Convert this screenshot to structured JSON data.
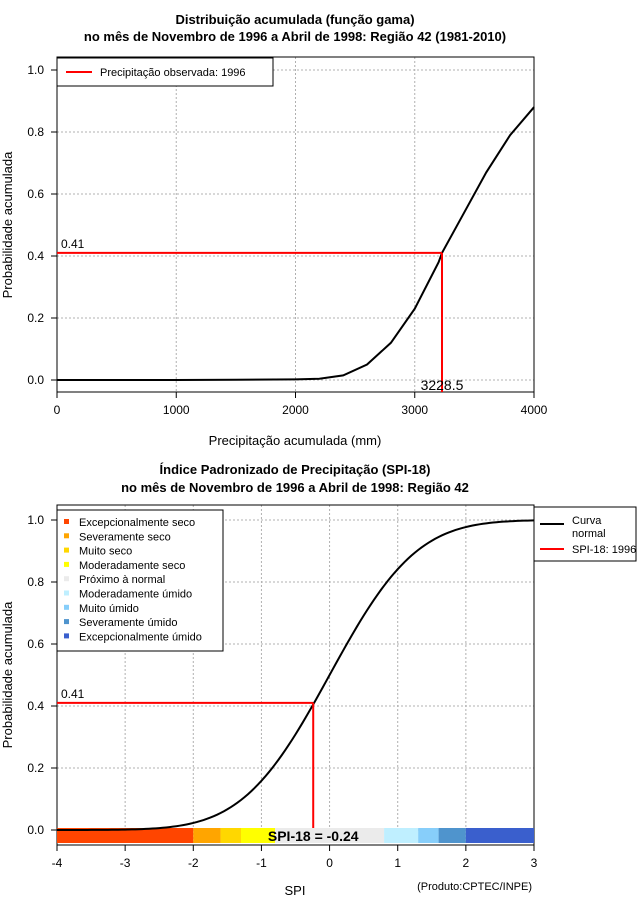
{
  "chart_data": [
    {
      "type": "line",
      "title_line1": "Distribuição acumulada (função gama)",
      "title_line2": "no mês de Novembro de 1996 a Abril de 1998: Região 42 (1981-2010)",
      "xlabel": "Precipitação acumulada (mm)",
      "ylabel": "Probabilidade acumulada",
      "xlim": [
        0,
        4000
      ],
      "ylim": [
        0,
        1
      ],
      "xticks": [
        "0",
        "1000",
        "2000",
        "3000",
        "4000"
      ],
      "xtick_values": [
        0,
        1000,
        2000,
        3000,
        4000
      ],
      "yticks": [
        "0.0",
        "0.2",
        "0.4",
        "0.6",
        "0.8",
        "1.0"
      ],
      "ytick_values": [
        0,
        0.2,
        0.4,
        0.6,
        0.8,
        1.0
      ],
      "grid": true,
      "legend": {
        "placement": "top-left",
        "entries": [
          {
            "label": "Precipitação observada: 1996",
            "color": "#ff0000"
          }
        ]
      },
      "curve": {
        "x": [
          0,
          500,
          1000,
          1500,
          2000,
          2200,
          2400,
          2600,
          2800,
          3000,
          3200,
          3228.5,
          3400,
          3600,
          3800,
          4000
        ],
        "y": [
          0,
          0,
          0,
          0.001,
          0.002,
          0.004,
          0.015,
          0.05,
          0.12,
          0.23,
          0.38,
          0.41,
          0.53,
          0.67,
          0.79,
          0.88
        ]
      },
      "observed": {
        "x": 3228.5,
        "y": 0.41,
        "x_label": "3228.5",
        "y_label": "0.41"
      }
    },
    {
      "type": "line",
      "title_line1": "Índice Padronizado de Precipitação (SPI-18)",
      "title_line2": "no mês de Novembro de 1996 a Abril de 1998: Região 42",
      "xlabel": "SPI",
      "ylabel": "Probabilidade acumulada",
      "xlim": [
        -4,
        3
      ],
      "ylim": [
        0,
        1
      ],
      "xticks": [
        "-4",
        "-3",
        "-2",
        "-1",
        "0",
        "1",
        "2",
        "3"
      ],
      "xtick_values": [
        -4,
        -3,
        -2,
        -1,
        0,
        1,
        2,
        3
      ],
      "yticks": [
        "0.0",
        "0.2",
        "0.4",
        "0.6",
        "0.8",
        "1.0"
      ],
      "ytick_values": [
        0,
        0.2,
        0.4,
        0.6,
        0.8,
        1.0
      ],
      "grid": true,
      "curve": {
        "distribution": "normal",
        "mean": 0,
        "sd": 1
      },
      "observed": {
        "x": -0.24,
        "y": 0.41,
        "y_label": "0.41",
        "spi_label": "SPI-18 = -0.24"
      },
      "legend_right": {
        "placement": "top-right",
        "entries": [
          {
            "label": "Curva",
            "label2": "normal",
            "color": "#000000"
          },
          {
            "label": "SPI-18: 1996",
            "color": "#ff0000"
          }
        ]
      },
      "categories": [
        {
          "label": "Excepcionalmente seco",
          "from": -4,
          "to": -2,
          "color": "#ff4500"
        },
        {
          "label": "Severamente seco",
          "from": -2,
          "to": -1.6,
          "color": "#ffa500"
        },
        {
          "label": "Muito seco",
          "from": -1.6,
          "to": -1.3,
          "color": "#ffd700"
        },
        {
          "label": "Moderadamente seco",
          "from": -1.3,
          "to": -0.8,
          "color": "#ffff00"
        },
        {
          "label": "Próximo à normal",
          "from": -0.8,
          "to": 0.8,
          "color": "#ebebeb"
        },
        {
          "label": "Moderadamente úmido",
          "from": 0.8,
          "to": 1.3,
          "color": "#bfefff"
        },
        {
          "label": "Muito úmido",
          "from": 1.3,
          "to": 1.6,
          "color": "#87cefa"
        },
        {
          "label": "Severamente úmido",
          "from": 1.6,
          "to": 2,
          "color": "#4f94cd"
        },
        {
          "label": "Excepcionalmente úmido",
          "from": 2,
          "to": 3,
          "color": "#3a5fcd"
        }
      ],
      "credit": "(Produto:CPTEC/INPE)"
    }
  ]
}
